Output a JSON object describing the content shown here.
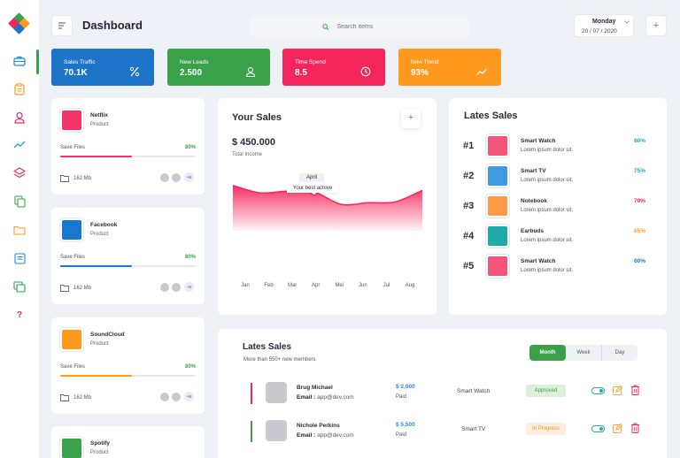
{
  "header": {
    "title": "Dashboard",
    "search_placeholder": "Search items",
    "date_day": "Monday",
    "date_value": "20 / 07 / 2020",
    "add_label": "+"
  },
  "sidebar": {
    "items": [
      {
        "icon": "briefcase-icon",
        "active": true
      },
      {
        "icon": "clipboard-icon"
      },
      {
        "icon": "user-icon"
      },
      {
        "icon": "trend-icon"
      },
      {
        "icon": "layers-icon"
      },
      {
        "icon": "copy-icon"
      },
      {
        "icon": "folder-icon"
      },
      {
        "icon": "notes-icon"
      },
      {
        "icon": "gallery-icon"
      },
      {
        "icon": "help-icon",
        "label": "?"
      }
    ]
  },
  "stats": [
    {
      "label": "Sales Traffic",
      "value": "70.1K",
      "color": "#1e74c8",
      "icon": "percent-icon"
    },
    {
      "label": "New Leads",
      "value": "2.500",
      "color": "#3aa14a",
      "icon": "user-icon"
    },
    {
      "label": "Time Spend",
      "value": "8.5",
      "color": "#f4255a",
      "icon": "clock-icon"
    },
    {
      "label": "New Trend",
      "value": "93%",
      "color": "#ff9a1f",
      "icon": "trend-icon"
    }
  ],
  "products": [
    {
      "name": "Netflix",
      "type": "Product",
      "color": "#f4336a",
      "save_label": "Save Files",
      "save_pct": "80%",
      "progress": 0.53,
      "size": "162 Mb",
      "more": "+5"
    },
    {
      "name": "Facebook",
      "type": "Product",
      "color": "#1877d0",
      "save_label": "Save Files",
      "save_pct": "80%",
      "progress": 0.53,
      "size": "162 Mb",
      "more": "+5"
    },
    {
      "name": "SoundCloud",
      "type": "Product",
      "color": "#ff9a1f",
      "save_label": "Save Files",
      "save_pct": "80%",
      "progress": 0.53,
      "size": "162 Mb",
      "more": "+5"
    },
    {
      "name": "Spotify",
      "type": "Product",
      "color": "#3aa14a"
    }
  ],
  "your_sales": {
    "title": "Your Sales",
    "add_label": "+",
    "amount": "$ 450.000",
    "subtitle": "Total Income",
    "tooltip_month": "April",
    "tooltip_text": "Your best achive",
    "chart_data": {
      "type": "area",
      "x": [
        "Jan",
        "Feb",
        "Mar",
        "Apr",
        "Mei",
        "Jun",
        "Jul",
        "Aug"
      ],
      "values": [
        55,
        46,
        48,
        47,
        32,
        34,
        35,
        49
      ],
      "highlight": "Apr",
      "color": "#f4255a"
    }
  },
  "lates_sales": {
    "title": "Lates Sales",
    "items": [
      {
        "rank": "#1",
        "name": "Smart Watch",
        "desc": "Lorem ipsum dolor sit.",
        "pct": "80%",
        "color": "#f4557a",
        "pct_color": "#2aa3b0"
      },
      {
        "rank": "#2",
        "name": "Smart TV",
        "desc": "Lorem ipsum dolor sit.",
        "pct": "75%",
        "color": "#3f9ae0",
        "pct_color": "#2aa3b0"
      },
      {
        "rank": "#3",
        "name": "Notebook",
        "desc": "Lorem ipsum dolor sit.",
        "pct": "70%",
        "color": "#ff9a4a",
        "pct_color": "#f4255a"
      },
      {
        "rank": "#4",
        "name": "Earbuds",
        "desc": "Lorem ipsum dolor sit.",
        "pct": "65%",
        "color": "#20a9a9",
        "pct_color": "#ff9a1f"
      },
      {
        "rank": "#5",
        "name": "Smart Watch",
        "desc": "Lorem ipsum dolor sit.",
        "pct": "60%",
        "color": "#f4557a",
        "pct_color": "#1e74c8"
      }
    ]
  },
  "sales_table": {
    "title": "Lates Sales",
    "subtitle": "More than 550+ new members",
    "tabs": [
      "Month",
      "Week",
      "Day"
    ],
    "active_tab": "Month",
    "rows": [
      {
        "name": "Brug Michael",
        "email_label": "Email :",
        "email": "app@dev.com",
        "amount": "$ 2,000",
        "paid": "Paid",
        "product": "Smart Watch",
        "status": "Approved",
        "status_bg": "#dcf0dc",
        "status_color": "#3aa14a",
        "bar_color": "#f4255a"
      },
      {
        "name": "Nichole Perkins",
        "email_label": "Email :",
        "email": "app@dev.com",
        "amount": "$ 5,500",
        "paid": "Paid",
        "product": "Smart TV",
        "status": "In Progress",
        "status_bg": "#fdeee0",
        "status_color": "#e8912a",
        "bar_color": "#3aa14a"
      }
    ]
  }
}
